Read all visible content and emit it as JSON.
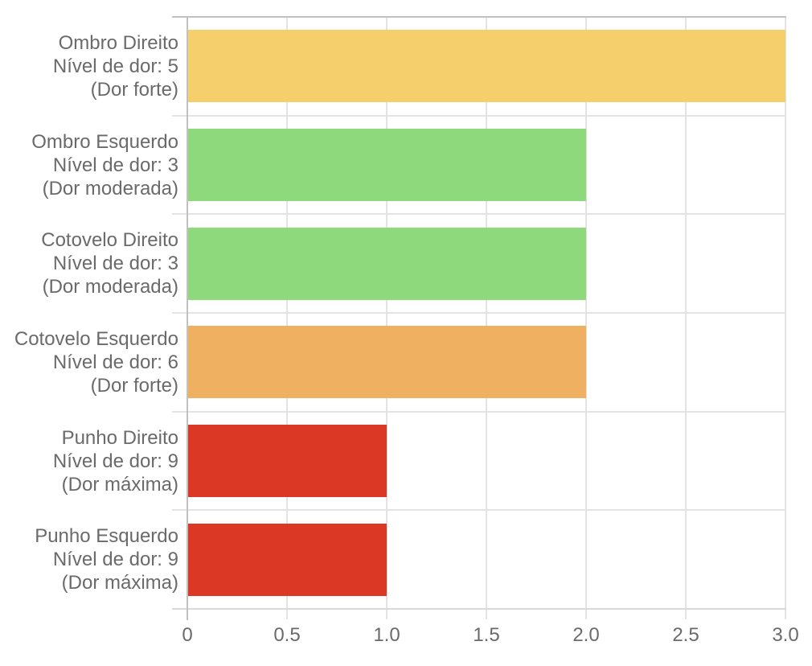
{
  "chart_data": {
    "type": "bar",
    "orientation": "horizontal",
    "title": "",
    "xlabel": "",
    "ylabel": "",
    "categories": [
      [
        "Ombro Direito",
        "Nível de dor: 5",
        "(Dor forte)"
      ],
      [
        "Ombro Esquerdo",
        "Nível de dor: 3",
        "(Dor moderada)"
      ],
      [
        "Cotovelo Direito",
        "Nível de dor: 3",
        "(Dor moderada)"
      ],
      [
        "Cotovelo Esquerdo",
        "Nível de dor: 6",
        "(Dor forte)"
      ],
      [
        "Punho Direito",
        "Nível de dor: 9",
        "(Dor máxima)"
      ],
      [
        "Punho Esquerdo",
        "Nível de dor: 9",
        "(Dor máxima)"
      ]
    ],
    "values": [
      3,
      2,
      2,
      2,
      1,
      1
    ],
    "bar_colors": [
      "#F5CF6C",
      "#8FD97D",
      "#8FD97D",
      "#F0B061",
      "#DB3826",
      "#DB3826"
    ],
    "x_ticks": [
      {
        "label": "0",
        "value": 0
      },
      {
        "label": "0.5",
        "value": 0.5
      },
      {
        "label": "1.0",
        "value": 1
      },
      {
        "label": "1.5",
        "value": 1.5
      },
      {
        "label": "2.0",
        "value": 2
      },
      {
        "label": "2.5",
        "value": 2.5
      },
      {
        "label": "3.0",
        "value": 3
      }
    ],
    "xlim": [
      0,
      3
    ],
    "grid": true,
    "legend": null,
    "colors": {
      "background": "#FFFFFF",
      "axis": "#C1C1C1",
      "axis_bottom": "#D9D9D9",
      "gridline": "#E3E3E3",
      "label_text": "#6A6A6A"
    }
  }
}
